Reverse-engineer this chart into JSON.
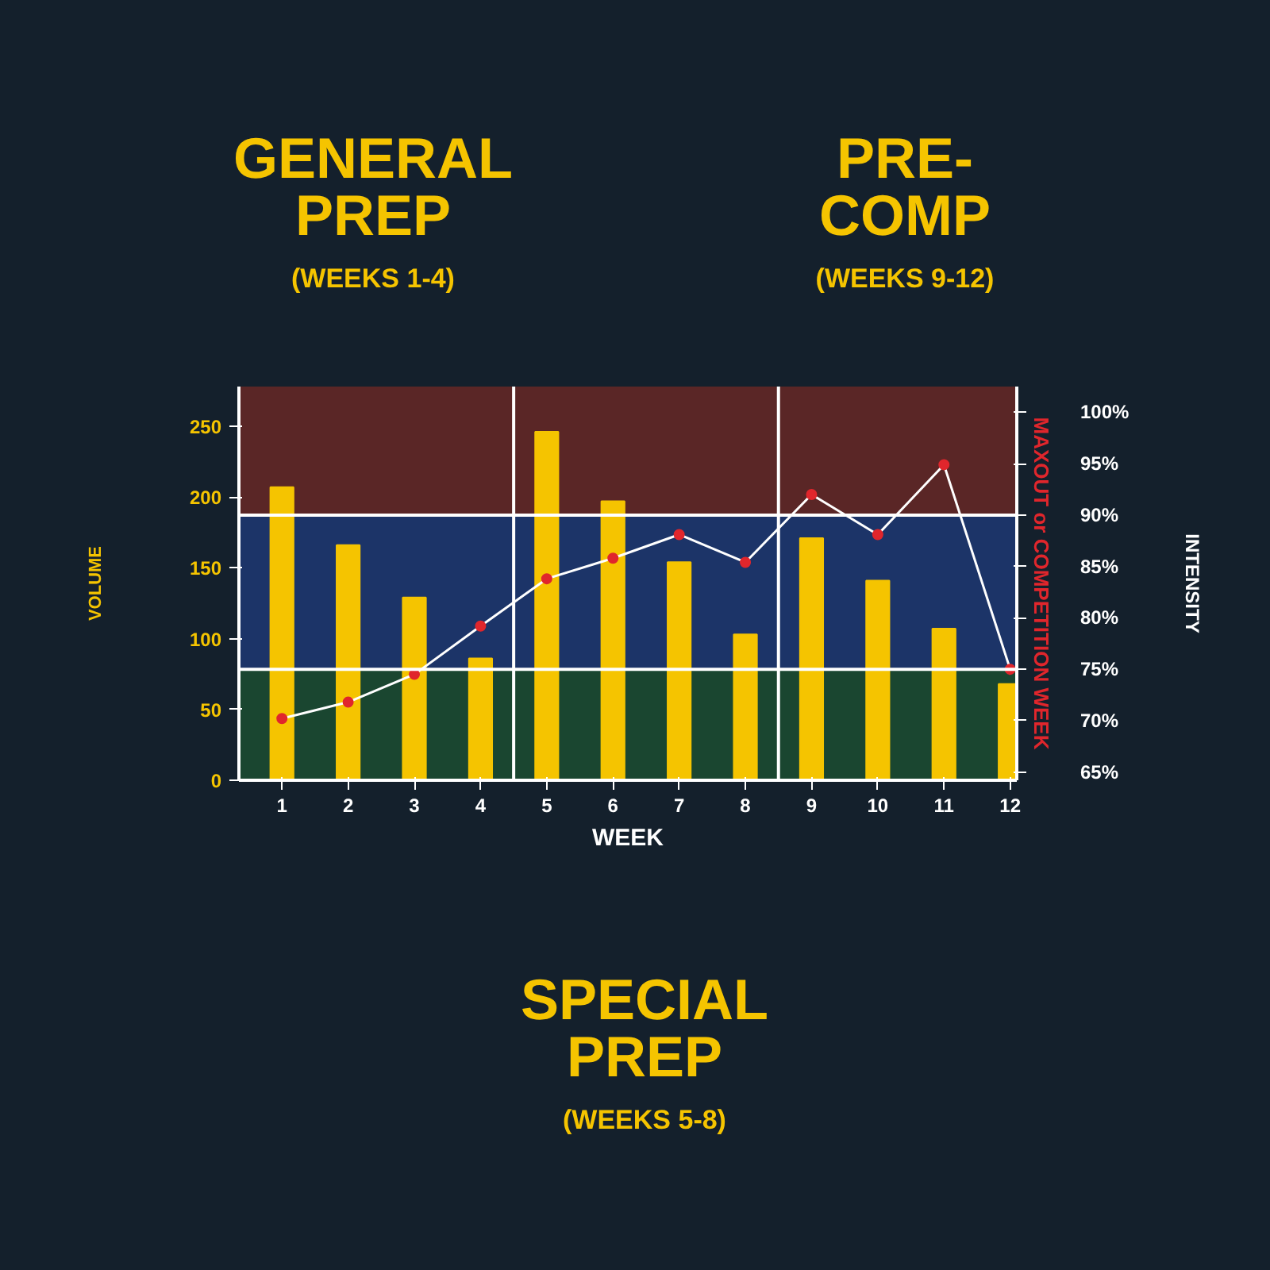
{
  "chart_data": {
    "type": "bar",
    "x": [
      1,
      2,
      3,
      4,
      5,
      6,
      7,
      8,
      9,
      10,
      11,
      12
    ],
    "xlabel": "WEEK",
    "ylabel": "VOLUME",
    "y2label": "INTENSITY",
    "series": [
      {
        "color": "#f5c400",
        "values": [
          207,
          166,
          129,
          86,
          246,
          197,
          154,
          103,
          171,
          141,
          107,
          68
        ]
      },
      {
        "type": "line",
        "axis": "y2",
        "color": "#ffffff",
        "marker": "circle",
        "values": [
          70.2,
          71.8,
          74.5,
          79.2,
          83.8,
          85.8,
          88.1,
          85.4,
          92.0,
          88.1,
          94.9,
          75
        ]
      }
    ],
    "xlim": [
      0.35,
      12.1
    ],
    "xticks": [
      1,
      2,
      3,
      4,
      5,
      6,
      7,
      8,
      9,
      10,
      11,
      12
    ],
    "ylim": [
      0,
      278
    ],
    "yticks": [
      0,
      50,
      100,
      150,
      200,
      250
    ],
    "y2lim": [
      64.2,
      102.5
    ],
    "y2ticks": [
      {
        "value": 65,
        "label": "65%"
      },
      {
        "value": 70,
        "label": "70%"
      },
      {
        "value": 75,
        "label": "75%"
      },
      {
        "value": 80,
        "label": "80%"
      },
      {
        "value": 85,
        "label": "85%"
      },
      {
        "value": 90,
        "label": "90%"
      },
      {
        "value": 95,
        "label": "95%"
      },
      {
        "value": 100,
        "label": "100%"
      }
    ],
    "bands": [
      {
        "axis": "y2",
        "from": 90,
        "to": 102.5,
        "label": "MAXOUT or COMPETITION WEEK",
        "color": "#5a2626"
      },
      {
        "axis": "y2",
        "from": 75,
        "to": 90,
        "color": "#1c3468"
      },
      {
        "axis": "y2",
        "from": 64.2,
        "to": 75,
        "color": "#1a4630"
      }
    ],
    "ref_lines": [
      {
        "axis": "x",
        "value": 4.5,
        "color": "#ffffff"
      },
      {
        "axis": "x",
        "value": 8.5,
        "color": "#ffffff"
      },
      {
        "axis": "y2",
        "value": 75,
        "color": "#ffffff"
      },
      {
        "axis": "y2",
        "value": 90,
        "color": "#ffffff"
      }
    ],
    "annotations": [
      "GENERAL\nPREP",
      "(WEEKS 1-4)",
      "PRE-\nCOMP",
      "(WEEKS 9-12)",
      "SPECIAL\nPREP",
      "(WEEKS 5-8)"
    ]
  }
}
